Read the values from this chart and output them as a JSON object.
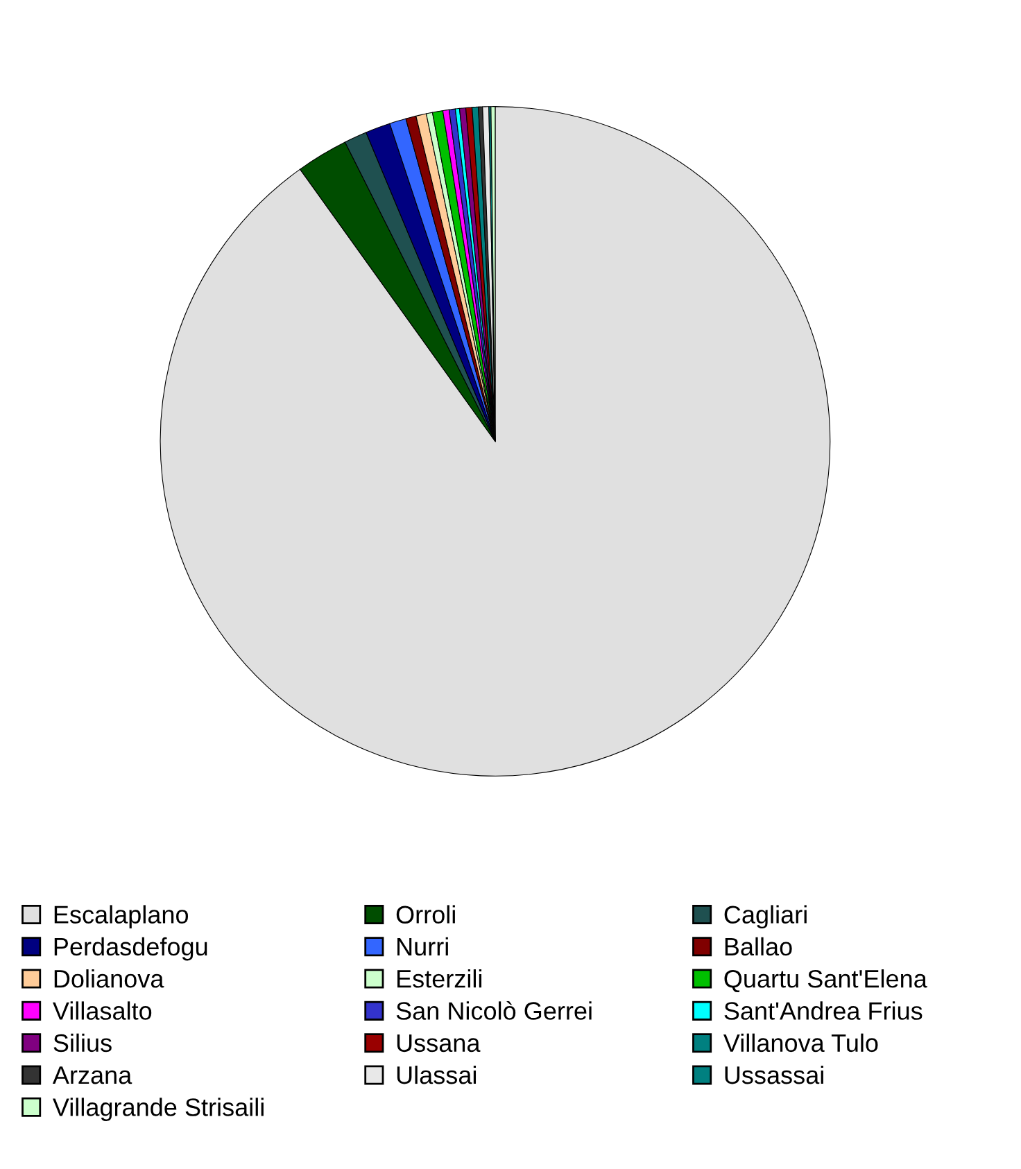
{
  "chart_data": {
    "type": "pie",
    "categories": [
      "Escalaplano",
      "Orroli",
      "Cagliari",
      "Perdasdefogu",
      "Nurri",
      "Ballao",
      "Dolianova",
      "Esterzili",
      "Quartu Sant'Elena",
      "Villasalto",
      "San Nicolò Gerrei",
      "Sant'Andrea Frius",
      "Silius",
      "Ussana",
      "Villanova Tulo",
      "Arzana",
      "Ulassai",
      "Ussassai",
      "Villagrande Strisaili"
    ],
    "values": [
      90.1,
      2.5,
      1.1,
      1.2,
      0.8,
      0.5,
      0.5,
      0.3,
      0.5,
      0.3,
      0.3,
      0.2,
      0.3,
      0.3,
      0.3,
      0.2,
      0.3,
      0.1,
      0.2
    ],
    "colors": [
      "#e0e0e0",
      "#004d00",
      "#1f5050",
      "#000080",
      "#3366ff",
      "#800000",
      "#ffcc99",
      "#ccffcc",
      "#00c000",
      "#ff00ff",
      "#3333cc",
      "#00ffff",
      "#800080",
      "#990000",
      "#008080",
      "#333333",
      "#e8e8e8",
      "#008080",
      "#ccffcc"
    ],
    "legend": "bottom"
  }
}
